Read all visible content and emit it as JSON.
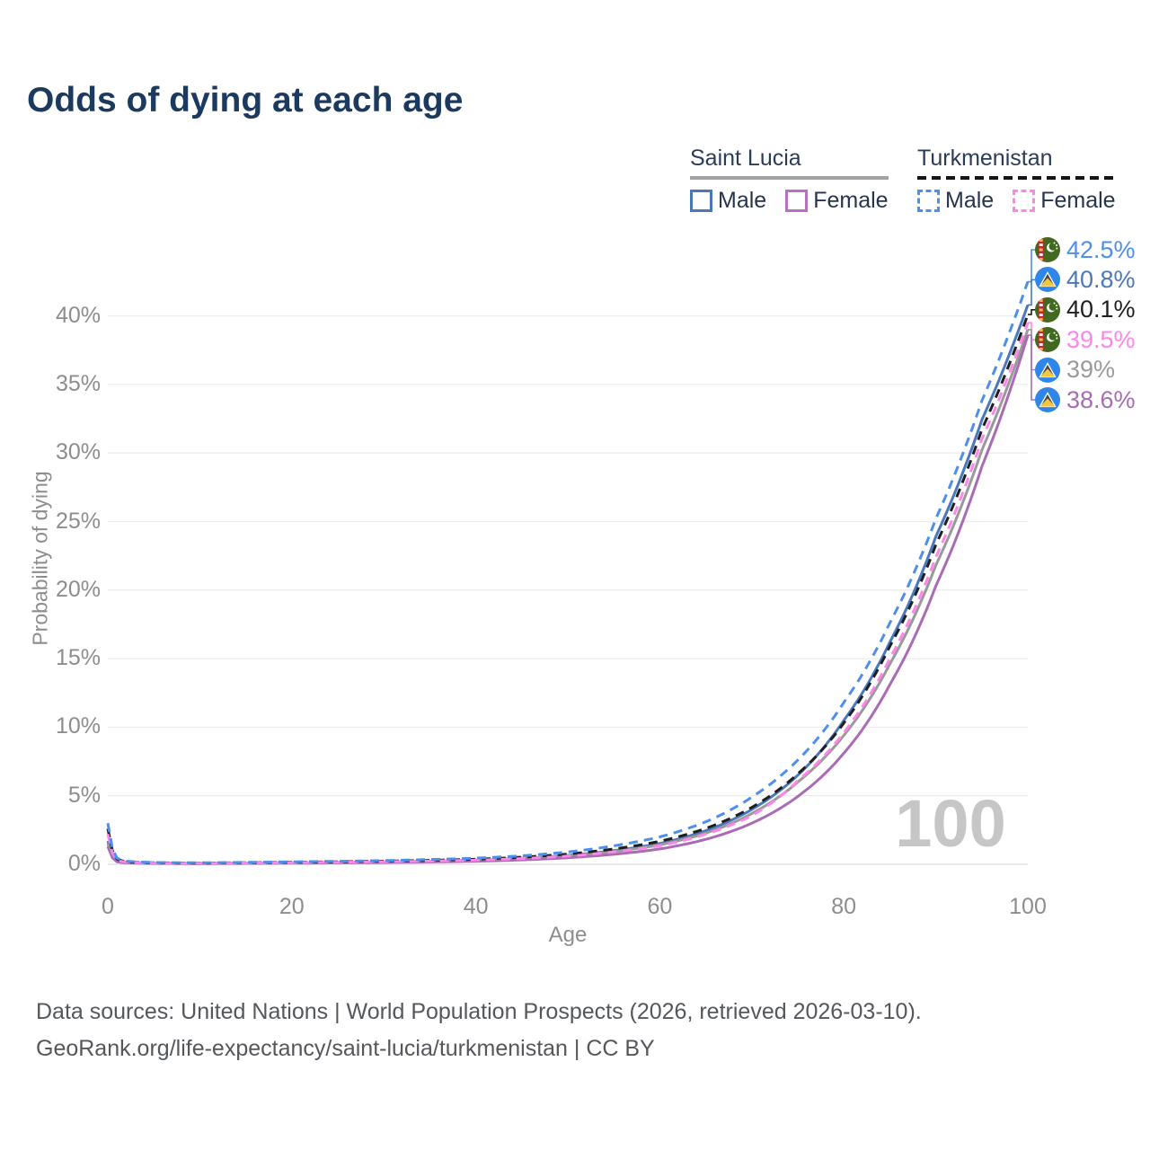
{
  "title": "Odds of dying at each age",
  "legend": {
    "groups": [
      {
        "country": "Saint Lucia",
        "line_style": "solid",
        "underline_color": "#a3a3a3",
        "items": [
          {
            "label": "Male",
            "color": "#4a78bb",
            "dashed": false
          },
          {
            "label": "Female",
            "color": "#b473bd",
            "dashed": false
          }
        ]
      },
      {
        "country": "Turkmenistan",
        "line_style": "dashed",
        "underline_color": "#151515",
        "items": [
          {
            "label": "Male",
            "color": "#4d8fea",
            "dashed": true
          },
          {
            "label": "Female",
            "color": "#ff85ea",
            "dashed": true
          }
        ]
      }
    ]
  },
  "chart_data": {
    "type": "line",
    "title": "Odds of dying at each age",
    "xlabel": "Age",
    "ylabel": "Probability of dying",
    "xlim": [
      0,
      100
    ],
    "ylim": [
      0,
      45
    ],
    "x_ticks": [
      0,
      20,
      40,
      60,
      80,
      100
    ],
    "y_ticks": [
      {
        "value": 0,
        "label": "0%"
      },
      {
        "value": 5,
        "label": "5%"
      },
      {
        "value": 10,
        "label": "10%"
      },
      {
        "value": 15,
        "label": "15%"
      },
      {
        "value": 20,
        "label": "20%"
      },
      {
        "value": 25,
        "label": "25%"
      },
      {
        "value": 30,
        "label": "30%"
      },
      {
        "value": 35,
        "label": "35%"
      },
      {
        "value": 40,
        "label": "40%"
      }
    ],
    "grid": true,
    "legend_position": "top-right",
    "watermark": "100",
    "x_control_ages": [
      0,
      1,
      2,
      5,
      10,
      20,
      30,
      40,
      45,
      50,
      55,
      60,
      65,
      70,
      75,
      80,
      85,
      90,
      95,
      100
    ],
    "series": [
      {
        "name": "Turkmenistan Male",
        "country": "Turkmenistan",
        "sex": "Male",
        "color": "#4d8fea",
        "dashed": true,
        "flag": "turkmenistan",
        "end_value": 42.5,
        "end_label": "42.5%",
        "values_pct": [
          3.0,
          0.45,
          0.22,
          0.13,
          0.11,
          0.18,
          0.27,
          0.45,
          0.62,
          0.9,
          1.35,
          2.0,
          3.1,
          4.9,
          7.6,
          11.8,
          17.6,
          25.2,
          33.8,
          42.5
        ]
      },
      {
        "name": "Saint Lucia Male",
        "country": "Saint Lucia",
        "sex": "Male",
        "color": "#4a78bb",
        "dashed": false,
        "flag": "saint-lucia",
        "end_value": 40.8,
        "end_label": "40.8%",
        "values_pct": [
          1.7,
          0.25,
          0.13,
          0.08,
          0.07,
          0.12,
          0.18,
          0.31,
          0.44,
          0.65,
          1.0,
          1.52,
          2.45,
          4.0,
          6.5,
          10.5,
          16.2,
          23.9,
          32.4,
          40.8
        ]
      },
      {
        "name": "Turkmenistan",
        "country": "Turkmenistan",
        "sex": "Both",
        "color": "#1f1f1f",
        "dashed": true,
        "flag": "turkmenistan",
        "end_value": 40.1,
        "end_label": "40.1%",
        "values_pct": [
          2.6,
          0.38,
          0.18,
          0.11,
          0.09,
          0.15,
          0.23,
          0.37,
          0.52,
          0.75,
          1.12,
          1.68,
          2.62,
          4.15,
          6.6,
          10.3,
          15.9,
          23.3,
          31.7,
          40.1
        ]
      },
      {
        "name": "Turkmenistan Female",
        "country": "Turkmenistan",
        "sex": "Female",
        "color": "#ff85ea",
        "dashed": true,
        "flag": "turkmenistan",
        "end_value": 39.5,
        "end_label": "39.5%",
        "values_pct": [
          2.2,
          0.3,
          0.15,
          0.09,
          0.08,
          0.12,
          0.19,
          0.3,
          0.42,
          0.6,
          0.9,
          1.35,
          2.2,
          3.55,
          6.1,
          9.6,
          15.0,
          22.4,
          31.0,
          39.5
        ]
      },
      {
        "name": "Saint Lucia",
        "country": "Saint Lucia",
        "sex": "Both",
        "color": "#9a9a9a",
        "dashed": false,
        "flag": "saint-lucia",
        "end_value": 39.0,
        "end_label": "39%",
        "values_pct": [
          1.5,
          0.22,
          0.12,
          0.07,
          0.06,
          0.1,
          0.16,
          0.27,
          0.4,
          0.6,
          0.93,
          1.42,
          2.28,
          3.7,
          6.0,
          9.4,
          14.6,
          21.8,
          30.2,
          39.0
        ]
      },
      {
        "name": "Saint Lucia Female",
        "country": "Saint Lucia",
        "sex": "Female",
        "color": "#a96cb4",
        "dashed": false,
        "flag": "saint-lucia",
        "end_value": 38.6,
        "end_label": "38.6%",
        "values_pct": [
          1.3,
          0.18,
          0.1,
          0.06,
          0.05,
          0.08,
          0.13,
          0.22,
          0.32,
          0.48,
          0.73,
          1.12,
          1.82,
          3.0,
          4.95,
          8.1,
          13.1,
          20.3,
          29.0,
          38.6
        ]
      }
    ]
  },
  "footer": {
    "line1": "Data sources: United Nations | World Population Prospects (2026, retrieved 2026-03-10).",
    "line2": "GeoRank.org/life-expectancy/saint-lucia/turkmenistan | CC BY"
  }
}
